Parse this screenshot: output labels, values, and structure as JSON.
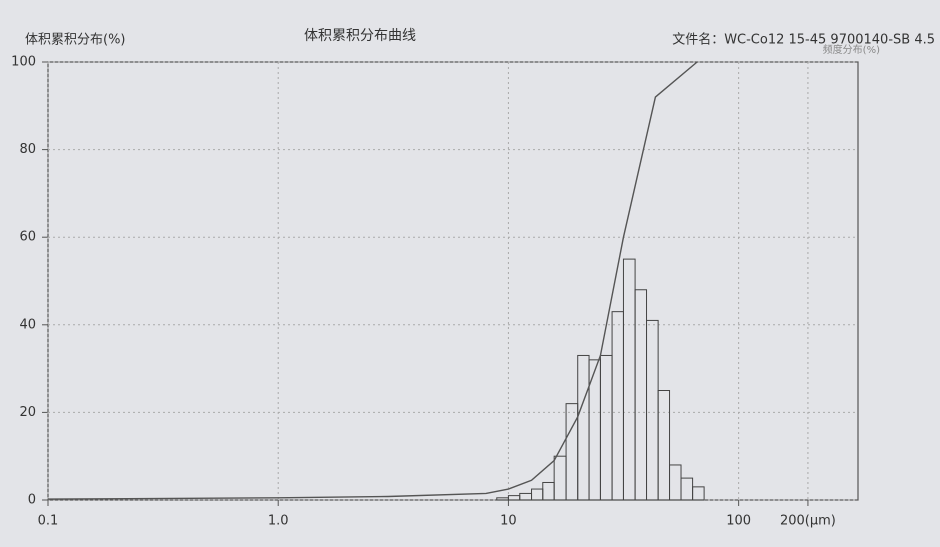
{
  "chart_data": {
    "type": "histogram",
    "title": "体积累积分布曲线",
    "y_label": "体积累积分布(%)",
    "file_label": "文件名：WC-Co12  15-45  9700140-SB 4.5",
    "y2_label": "频度分布(%)",
    "xscale": "log",
    "xlim": [
      0.1,
      330
    ],
    "xticks": [
      0.1,
      {
        "value": 1,
        "label": "1.0"
      },
      10,
      100,
      {
        "value": 200,
        "label": "200(μm)"
      }
    ],
    "ylim": [
      0,
      100
    ],
    "yticks": [
      0,
      20,
      40,
      60,
      80,
      100
    ],
    "grid": true,
    "color": "#444444",
    "bins": [
      8.9,
      10,
      11.2,
      12.6,
      14.1,
      15.8,
      17.8,
      20,
      22.4,
      25.1,
      28.2,
      31.6,
      35.5,
      39.8,
      44.7,
      50.1,
      56.2,
      63.1,
      70.8
    ],
    "values": [
      0.5,
      1,
      1.5,
      2.5,
      4,
      10,
      22,
      33,
      32,
      33,
      43,
      55,
      48,
      41,
      25,
      8,
      5,
      3
    ],
    "curve": {
      "color": "#555555",
      "x": [
        0.1,
        1,
        3,
        8,
        10,
        12.6,
        15.8,
        20,
        25.1,
        31.6,
        43.5,
        66
      ],
      "values": [
        0.2,
        0.5,
        0.8,
        1.5,
        2.5,
        4.5,
        9,
        19,
        33,
        60,
        92,
        100
      ]
    }
  }
}
